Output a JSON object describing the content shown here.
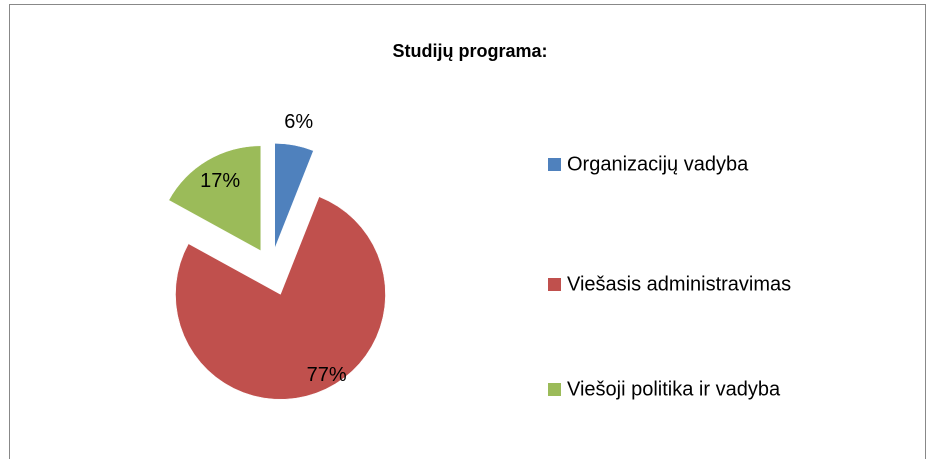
{
  "chart_data": {
    "type": "pie",
    "title": "Studijų programa:",
    "categories": [
      "Organizacijų vadyba",
      "Viešasis administravimas",
      "Viešoji politika ir vadyba"
    ],
    "values": [
      6,
      77,
      17
    ],
    "value_labels": [
      "6%",
      "77%",
      "17%"
    ],
    "colors": [
      "#4f81bd",
      "#c0504d",
      "#9bbb59"
    ],
    "legend": "right"
  }
}
